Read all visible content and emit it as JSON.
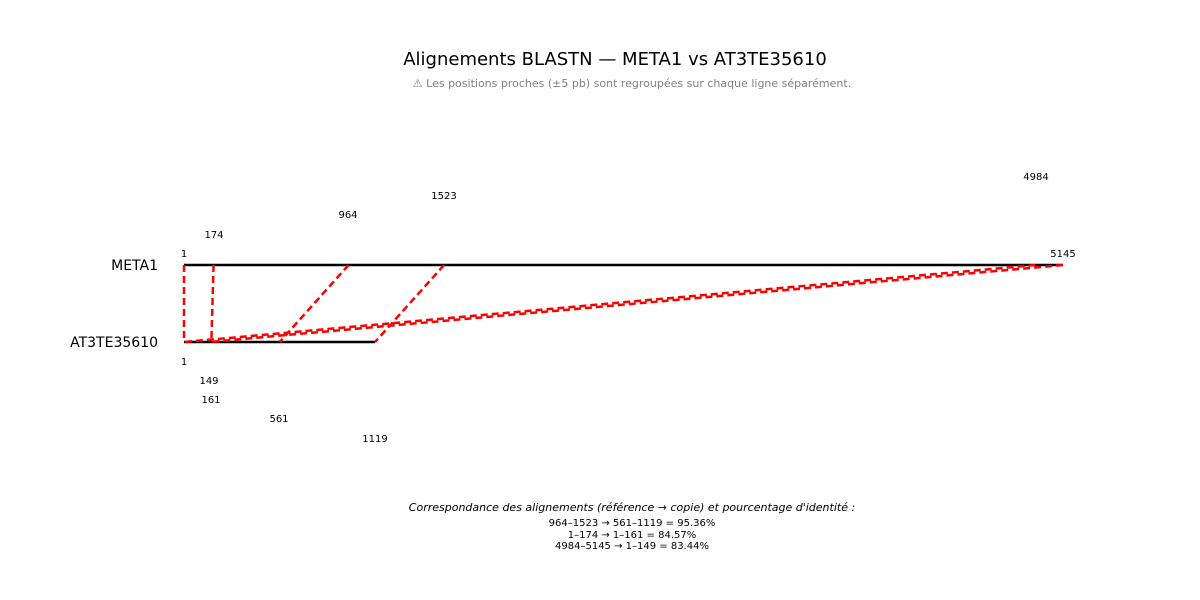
{
  "title": "Alignements BLASTN — META1 vs AT3TE35610",
  "subtitle": "⚠ Les positions proches (±5 pb) sont regroupées sur chaque ligne séparément.",
  "reference": {
    "name": "META1",
    "length": 5145
  },
  "query": {
    "name": "AT3TE35610",
    "length": 1119
  },
  "colors": {
    "sequence_line": "#000000",
    "alignment": "#ff0000",
    "subtitle": "#808080"
  },
  "reference_positions": [
    "1",
    "174",
    "964",
    "1523",
    "4984",
    "5145"
  ],
  "query_positions": [
    "1",
    "149",
    "161",
    "561",
    "1119"
  ],
  "alignments": [
    {
      "ref_start": 964,
      "ref_end": 1523,
      "query_start": 561,
      "query_end": 1119,
      "identity": "95.36%"
    },
    {
      "ref_start": 1,
      "ref_end": 174,
      "query_start": 1,
      "query_end": 161,
      "identity": "84.57%"
    },
    {
      "ref_start": 4984,
      "ref_end": 5145,
      "query_start": 1,
      "query_end": 149,
      "identity": "83.44%"
    }
  ],
  "caption": {
    "title": "Correspondance des alignements (référence → copie) et pourcentage d'identité :",
    "lines": [
      "964–1523 → 561–1119 = 95.36%",
      "1–174 → 1–161 = 84.57%",
      "4984–5145 → 1–149 = 83.44%"
    ]
  }
}
